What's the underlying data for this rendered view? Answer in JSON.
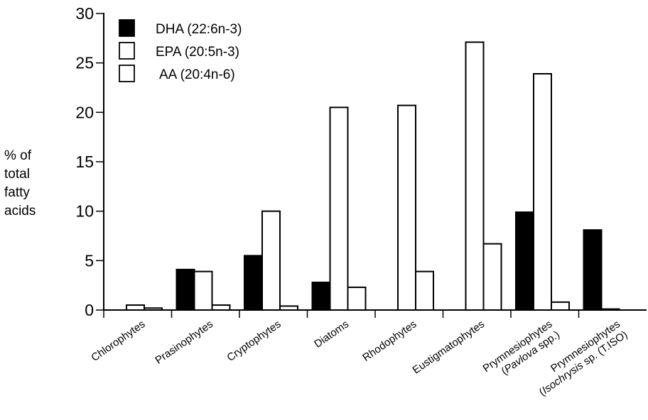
{
  "chart_data": {
    "type": "bar",
    "ylabel": [
      "% of",
      "total",
      "fatty",
      "acids"
    ],
    "ylim": [
      0,
      30
    ],
    "yticks": [
      0,
      5,
      10,
      15,
      20,
      25,
      30
    ],
    "grid": false,
    "legend_position": "top-left",
    "categories": [
      {
        "line1": "Chlorophytes",
        "line2": "",
        "line2_italic": "",
        "line2_tail": ""
      },
      {
        "line1": "Prasinophytes",
        "line2": "",
        "line2_italic": "",
        "line2_tail": ""
      },
      {
        "line1": "Cryptophytes",
        "line2": "",
        "line2_italic": "",
        "line2_tail": ""
      },
      {
        "line1": "Diatoms",
        "line2": "",
        "line2_italic": "",
        "line2_tail": ""
      },
      {
        "line1": "Rhodophytes",
        "line2": "",
        "line2_italic": "",
        "line2_tail": ""
      },
      {
        "line1": "Eustigmatophytes",
        "line2": "",
        "line2_italic": "",
        "line2_tail": ""
      },
      {
        "line1": "Prymnesiophytes",
        "line2": "(",
        "line2_italic": "Pavlova",
        "line2_tail": " spp.)"
      },
      {
        "line1": "Prymnesiophytes",
        "line2": "(",
        "line2_italic": "Isochrysis",
        "line2_tail": " sp. (T.ISO)"
      }
    ],
    "series": [
      {
        "name": "DHA (22:6n-3)",
        "fill": "#000000",
        "values": [
          0,
          4.1,
          5.5,
          2.8,
          0,
          0,
          9.9,
          8.1
        ]
      },
      {
        "name": "EPA (20:5n-3)",
        "fill": "#ffffff",
        "values": [
          0.5,
          3.9,
          10.0,
          20.5,
          20.7,
          27.1,
          23.9,
          0.1
        ]
      },
      {
        "name": "AA  (20:4n-6)",
        "fill": "#ffffff",
        "values": [
          0.2,
          0.5,
          0.4,
          2.3,
          3.9,
          6.7,
          0.8,
          0
        ]
      }
    ]
  }
}
